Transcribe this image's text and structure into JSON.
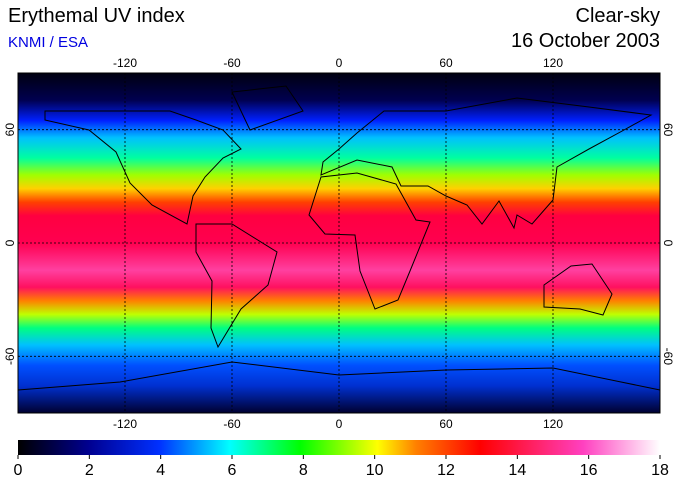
{
  "title": "Erythemal UV index",
  "subtitle": "KNMI / ESA",
  "condition": "Clear-sky",
  "date": "16 October 2003",
  "map": {
    "xlim": [
      -180,
      180
    ],
    "ylim": [
      -90,
      90
    ],
    "xticks": [
      -120,
      -60,
      0,
      60,
      120
    ],
    "yticks": [
      60,
      0,
      -60
    ]
  },
  "colorbar": {
    "lim": [
      0,
      18
    ],
    "ticks": [
      0,
      2,
      4,
      6,
      8,
      10,
      12,
      14,
      16,
      18
    ]
  }
}
